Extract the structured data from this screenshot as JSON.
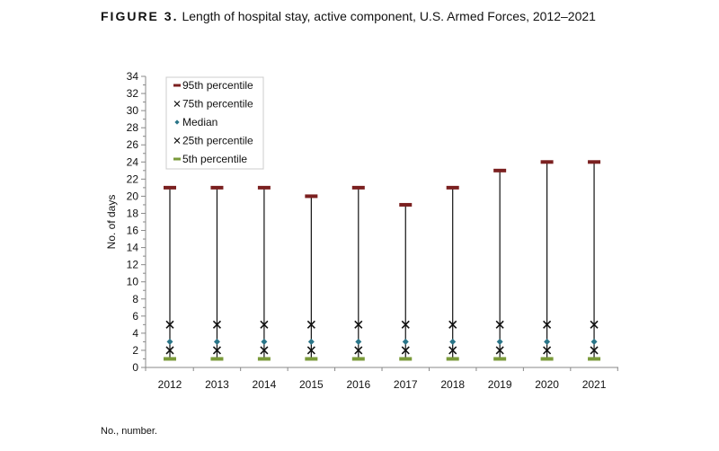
{
  "title": {
    "label": "FIGURE 3.",
    "text": "Length of hospital stay, active component, U.S. Armed Forces, 2012–2021"
  },
  "footnote": "No., number.",
  "chart_data": {
    "type": "scatter",
    "title": "Length of hospital stay, active component, U.S. Armed Forces, 2012–2021",
    "xlabel": "",
    "ylabel": "No. of days",
    "ylim": [
      0,
      34
    ],
    "yticks": [
      0,
      2,
      4,
      6,
      8,
      10,
      12,
      14,
      16,
      18,
      20,
      22,
      24,
      26,
      28,
      30,
      32,
      34
    ],
    "categories": [
      "2012",
      "2013",
      "2014",
      "2015",
      "2016",
      "2017",
      "2018",
      "2019",
      "2020",
      "2021"
    ],
    "grid": false,
    "legend": "top-left",
    "series": [
      {
        "name": "95th percentile",
        "marker": "dash",
        "color": "#7b2020",
        "values": [
          21,
          21,
          21,
          20,
          21,
          19,
          21,
          23,
          24,
          24
        ]
      },
      {
        "name": "75th percentile",
        "marker": "x",
        "color": "#111111",
        "values": [
          5,
          5,
          5,
          5,
          5,
          5,
          5,
          5,
          5,
          5
        ]
      },
      {
        "name": "Median",
        "marker": "diamond",
        "color": "#2a7588",
        "values": [
          3,
          3,
          3,
          3,
          3,
          3,
          3,
          3,
          3,
          3
        ]
      },
      {
        "name": "25th percentile",
        "marker": "x",
        "color": "#111111",
        "values": [
          2,
          2,
          2,
          2,
          2,
          2,
          2,
          2,
          2,
          2
        ]
      },
      {
        "name": "5th percentile",
        "marker": "dash",
        "color": "#7a9a3a",
        "values": [
          1,
          1,
          1,
          1,
          1,
          1,
          1,
          1,
          1,
          1
        ]
      }
    ]
  }
}
